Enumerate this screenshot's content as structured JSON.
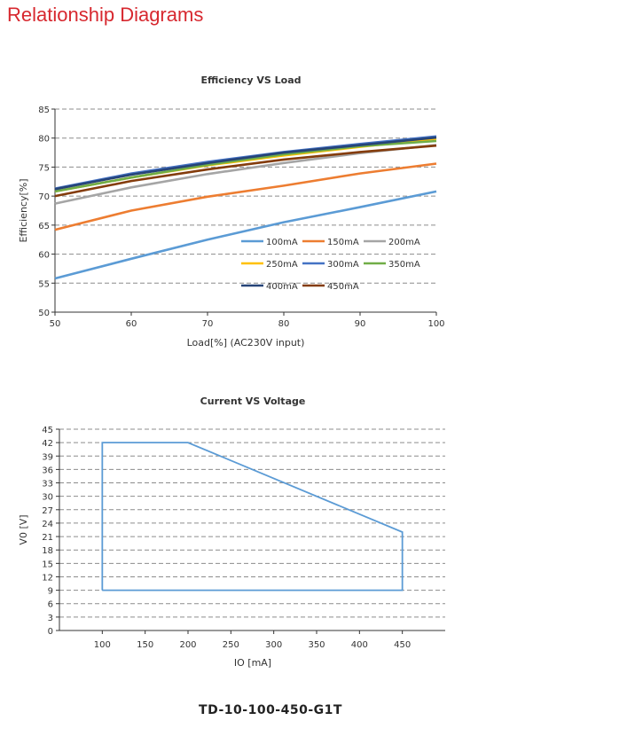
{
  "page": {
    "title": "Relationship Diagrams",
    "title_color": "#d7282f",
    "model": "TD-10-100-450-G1T"
  },
  "chart_data": [
    {
      "type": "line",
      "title": "Efficiency VS Load",
      "xlabel": "Load[%]  (AC230V input)",
      "ylabel": "Efficiency[%]",
      "xlim": [
        50,
        100
      ],
      "ylim": [
        50,
        85
      ],
      "xticks": [
        50,
        60,
        70,
        80,
        90,
        100
      ],
      "yticks": [
        50,
        55,
        60,
        65,
        70,
        75,
        80,
        85
      ],
      "grid": "horizontal-dashed",
      "legend_position": "bottom-right-inside",
      "x": [
        50,
        60,
        70,
        80,
        90,
        100
      ],
      "series": [
        {
          "name": "100mA",
          "color": "#5b9bd5",
          "values": [
            55.8,
            59.2,
            62.5,
            65.5,
            68.1,
            70.8
          ]
        },
        {
          "name": "150mA",
          "color": "#ed7d31",
          "values": [
            64.2,
            67.5,
            69.9,
            71.8,
            73.9,
            75.6
          ]
        },
        {
          "name": "200mA",
          "color": "#a5a5a5",
          "values": [
            68.7,
            71.5,
            73.8,
            75.7,
            77.4,
            78.8
          ]
        },
        {
          "name": "250mA",
          "color": "#ffc000",
          "values": [
            70.8,
            73.2,
            75.3,
            77.0,
            78.5,
            79.9
          ]
        },
        {
          "name": "300mA",
          "color": "#4472c4",
          "values": [
            71.3,
            73.9,
            75.9,
            77.6,
            79.0,
            80.3
          ]
        },
        {
          "name": "350mA",
          "color": "#70ad47",
          "values": [
            70.8,
            73.2,
            75.4,
            77.2,
            78.6,
            79.5
          ]
        },
        {
          "name": "400mA",
          "color": "#264478",
          "values": [
            71.2,
            73.7,
            75.7,
            77.5,
            78.8,
            80.1
          ]
        },
        {
          "name": "450mA",
          "color": "#843c0c",
          "values": [
            70.0,
            72.6,
            74.6,
            76.3,
            77.6,
            78.7
          ]
        }
      ]
    },
    {
      "type": "line",
      "title": "Current VS Voltage",
      "xlabel": "IO [mA]",
      "ylabel": "V0 [V]",
      "xlim": [
        50,
        500
      ],
      "ylim": [
        0,
        45
      ],
      "xticks": [
        100,
        150,
        200,
        250,
        300,
        350,
        400,
        450
      ],
      "yticks": [
        0,
        3,
        6,
        9,
        12,
        15,
        18,
        21,
        24,
        27,
        30,
        33,
        36,
        39,
        42,
        45
      ],
      "grid": "horizontal-dashed",
      "series": [
        {
          "name": "",
          "color": "#5b9bd5",
          "x": [
            100,
            100,
            200,
            450,
            450,
            100
          ],
          "values": [
            9,
            42,
            42,
            22,
            9,
            9
          ]
        }
      ]
    }
  ]
}
